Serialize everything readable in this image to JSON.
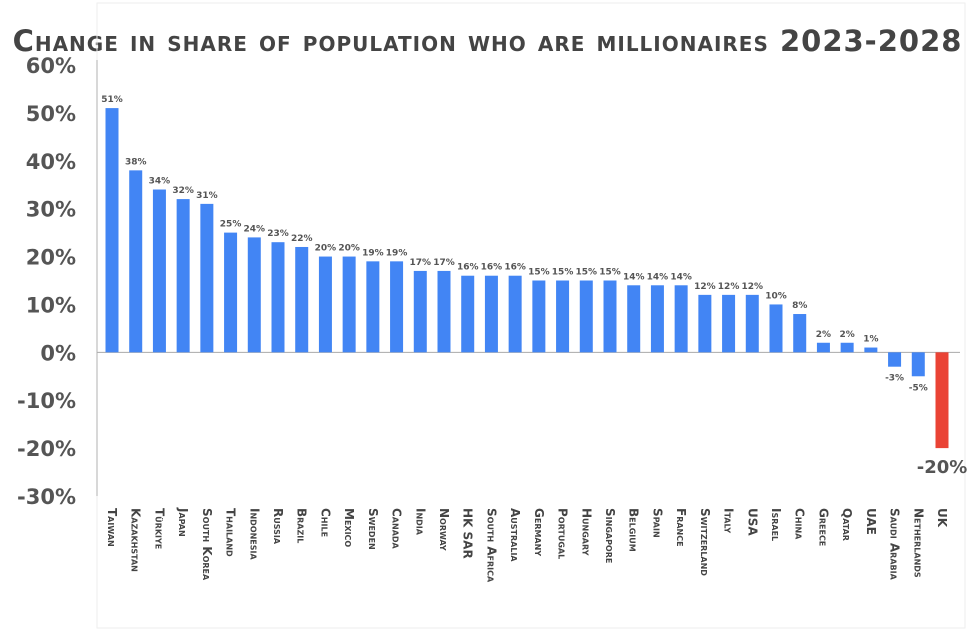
{
  "chart_data": {
    "type": "bar",
    "title": "Change in share of population who are millionaires 2023-2028",
    "xlabel": "",
    "ylabel": "",
    "ylim": [
      -30,
      60
    ],
    "yticks": [
      "60%",
      "50%",
      "40%",
      "30%",
      "20%",
      "10%",
      "0%",
      "-10%",
      "-20%",
      "-30%"
    ],
    "grid": false,
    "categories": [
      "Taiwan",
      "Kazakhstan",
      "Türkiye",
      "Japan",
      "South Korea",
      "Thailand",
      "Indonesia",
      "Russia",
      "Brazil",
      "Chile",
      "Mexico",
      "Sweden",
      "Canada",
      "India",
      "Norway",
      "HK SAR",
      "South Africa",
      "Australia",
      "Germany",
      "Portugal",
      "Hungary",
      "Singapore",
      "Belgium",
      "Spain",
      "France",
      "Switzerland",
      "Italy",
      "USA",
      "Israel",
      "China",
      "Greece",
      "Qatar",
      "UAE",
      "Saudi Arabia",
      "Netherlands",
      "UK"
    ],
    "values": [
      51,
      38,
      34,
      32,
      31,
      25,
      24,
      23,
      22,
      20,
      20,
      19,
      19,
      17,
      17,
      16,
      16,
      16,
      15,
      15,
      15,
      15,
      14,
      14,
      14,
      12,
      12,
      12,
      10,
      8,
      2,
      2,
      1,
      -3,
      -5,
      -20
    ],
    "data_labels": [
      "51%",
      "38%",
      "34%",
      "32%",
      "31%",
      "25%",
      "24%",
      "23%",
      "22%",
      "20%",
      "20%",
      "19%",
      "19%",
      "17%",
      "17%",
      "16%",
      "16%",
      "16%",
      "15%",
      "15%",
      "15%",
      "15%",
      "14%",
      "14%",
      "14%",
      "12%",
      "12%",
      "12%",
      "10%",
      "8%",
      "2%",
      "2%",
      "1%",
      "-3%",
      "-5%",
      "-20%"
    ],
    "colors": {
      "default": "#4285f4",
      "highlight": "#ea4335",
      "highlight_category": "UK"
    }
  }
}
